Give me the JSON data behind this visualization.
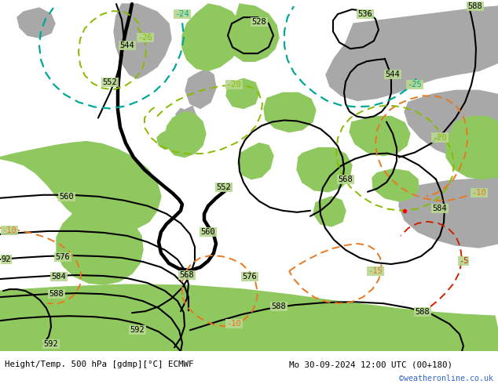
{
  "title_left": "Height/Temp. 500 hPa [gdmp][°C] ECMWF",
  "title_right": "Mo 30-09-2024 12:00 UTC (00+180)",
  "credit": "©weatheronline.co.uk",
  "bottom_bar_color": "#e0e0e0",
  "credit_color": "#3366cc",
  "text_color": "#000000",
  "fig_width": 6.34,
  "fig_height": 4.9,
  "dpi": 100,
  "map_bg": "#b8d890",
  "gray_color": "#a8a8a8",
  "green_color": "#90c860",
  "white_area": "#d8d8d8"
}
